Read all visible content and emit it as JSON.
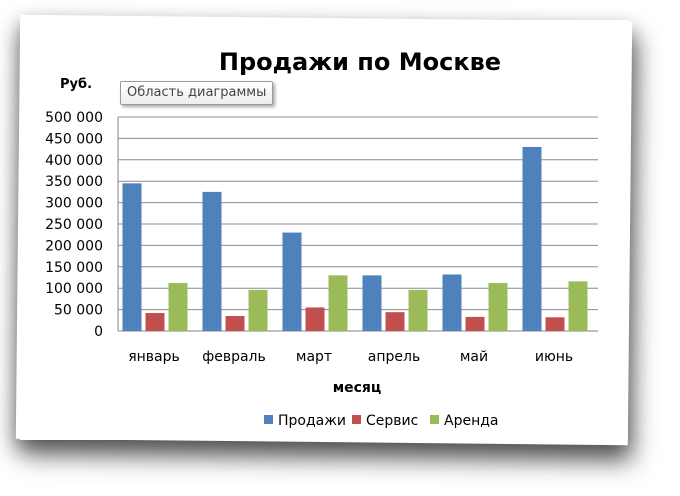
{
  "tooltip": "Область диаграммы",
  "chart_data": {
    "type": "bar",
    "title": "Продажи по Москве",
    "ylabel": "Руб.",
    "xlabel": "месяц",
    "categories": [
      "январь",
      "февраль",
      "март",
      "апрель",
      "май",
      "июнь"
    ],
    "ylim": [
      0,
      500000
    ],
    "yticks": [
      0,
      50000,
      100000,
      150000,
      200000,
      250000,
      300000,
      350000,
      400000,
      450000,
      500000
    ],
    "ytick_labels": [
      "0",
      "50 000",
      "100 000",
      "150 000",
      "200 000",
      "250 000",
      "300 000",
      "350 000",
      "400 000",
      "450 000",
      "500 000"
    ],
    "grid": true,
    "legend_position": "bottom",
    "series": [
      {
        "name": "Продажи",
        "color": "#4f81bd",
        "values": [
          345000,
          325000,
          230000,
          130000,
          132000,
          430000
        ]
      },
      {
        "name": "Сервис",
        "color": "#c0504d",
        "values": [
          42000,
          35000,
          55000,
          44000,
          33000,
          32000
        ]
      },
      {
        "name": "Аренда",
        "color": "#9bbb59",
        "values": [
          112000,
          96000,
          130000,
          96000,
          112000,
          116000
        ]
      }
    ]
  }
}
